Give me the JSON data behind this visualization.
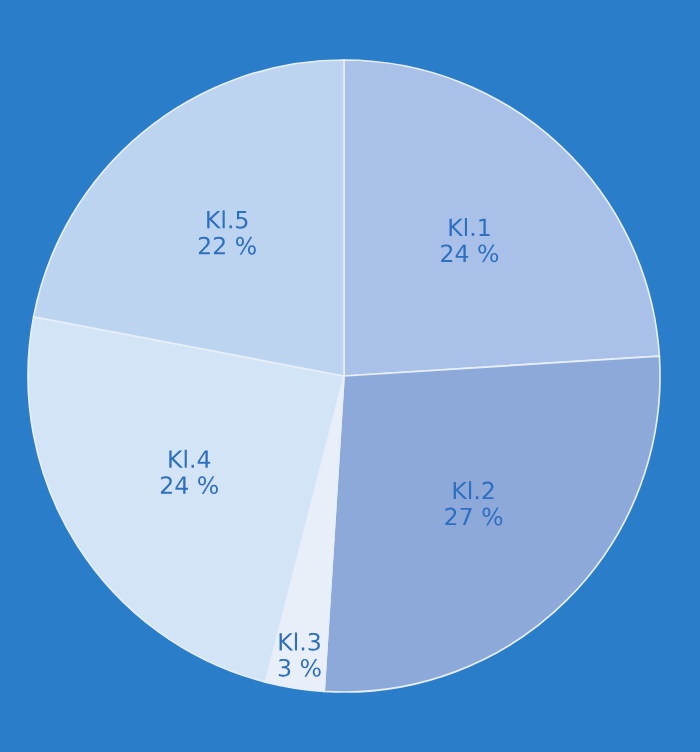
{
  "chart_data": {
    "type": "pie",
    "categories": [
      "Kl.1",
      "Kl.2",
      "Kl.3",
      "Kl.4",
      "Kl.5"
    ],
    "values": [
      24,
      27,
      3,
      24,
      22
    ],
    "colors": [
      "#a9c1e8",
      "#8da9da",
      "#e9eff9",
      "#d3e4f6",
      "#bdd4f0"
    ],
    "value_labels": [
      "24 %",
      "27 %",
      "3 %",
      "24 %",
      "22 %"
    ]
  }
}
